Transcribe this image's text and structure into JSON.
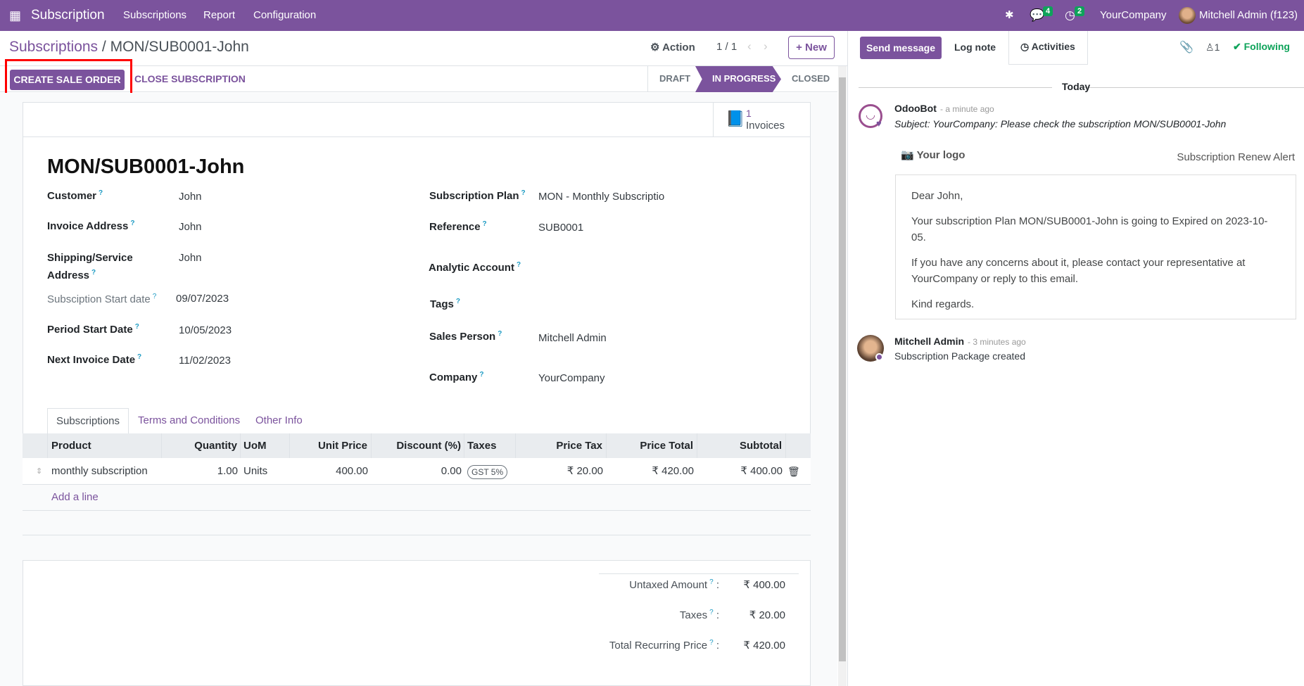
{
  "navbar": {
    "app_name": "Subscription",
    "menus": [
      "Subscriptions",
      "Report",
      "Configuration"
    ],
    "messages_count": "4",
    "activities_count": "2",
    "company": "YourCompany",
    "user": "Mitchell Admin (f123)"
  },
  "control_panel": {
    "breadcrumb_parent": "Subscriptions",
    "breadcrumb_sep": "/",
    "breadcrumb_current": "MON/SUB0001-John",
    "action_label": "Action",
    "pager": "1 / 1",
    "new_label": "New"
  },
  "statusbar": {
    "buttons": [
      "CREATE SALE ORDER",
      "CLOSE SUBSCRIPTION"
    ],
    "stages": [
      "DRAFT",
      "IN PROGRESS",
      "CLOSED"
    ],
    "active_stage": "IN PROGRESS"
  },
  "smart_button": {
    "count": "1",
    "label": "Invoices"
  },
  "form": {
    "title": "MON/SUB0001-John",
    "left": [
      {
        "label": "Customer",
        "value": "John"
      },
      {
        "label": "Invoice Address",
        "value": "John"
      },
      {
        "label": "Shipping/Service Address",
        "value": "John"
      },
      {
        "label": "Subsciption Start date",
        "value": "09/07/2023"
      },
      {
        "label": "Period Start Date",
        "value": "10/05/2023"
      },
      {
        "label": "Next Invoice Date",
        "value": "11/02/2023"
      }
    ],
    "right": [
      {
        "label": "Subscription Plan",
        "value": "MON - Monthly Subscriptio"
      },
      {
        "label": "Reference",
        "value": "SUB0001"
      },
      {
        "label": "Analytic Account",
        "value": ""
      },
      {
        "label": "Tags",
        "value": ""
      },
      {
        "label": "Sales Person",
        "value": "Mitchell Admin"
      },
      {
        "label": "Company",
        "value": "YourCompany"
      }
    ],
    "tabs": [
      "Subscriptions",
      "Terms and Conditions",
      "Other Info"
    ],
    "active_tab": "Subscriptions",
    "table": {
      "headers": [
        "Product",
        "Quantity",
        "UoM",
        "Unit Price",
        "Discount (%)",
        "Taxes",
        "Price Tax",
        "Price Total",
        "Subtotal"
      ],
      "rows": [
        {
          "product": "monthly subscription",
          "quantity": "1.00",
          "uom": "Units",
          "unit_price": "400.00",
          "discount": "0.00",
          "taxes": "GST 5%",
          "price_tax": "₹ 20.00",
          "price_total": "₹ 420.00",
          "subtotal": "₹ 400.00"
        }
      ],
      "add_line": "Add a line"
    },
    "totals": [
      {
        "label": "Untaxed Amount",
        "value": "₹ 400.00"
      },
      {
        "label": "Taxes",
        "value": "₹ 20.00"
      },
      {
        "label": "Total Recurring Price",
        "value": "₹ 420.00"
      }
    ]
  },
  "chatter": {
    "send_message": "Send message",
    "log_note": "Log note",
    "activities": "Activities",
    "followers_count": "1",
    "following": "Following",
    "date_divider": "Today",
    "messages": [
      {
        "author": "OdooBot",
        "time": "- a minute ago",
        "subject": "Subject: YourCompany: Please check the subscription MON/SUB0001-John",
        "logo_text": "Your logo",
        "header_right": "Subscription Renew Alert",
        "body": [
          "Dear John,",
          "Your subscription Plan MON/SUB0001-John is going to Expired on 2023-10-05.",
          "If you have any concerns about it, please contact your representative at YourCompany or reply to this email.",
          "Kind regards."
        ]
      },
      {
        "author": "Mitchell Admin",
        "time": "- 3 minutes ago",
        "body_text": "Subscription Package created"
      }
    ]
  },
  "colors": {
    "brand": "#7b539d",
    "badge": "#0ea35a",
    "following": "#0ea35a",
    "highlight": "#ff0000"
  }
}
